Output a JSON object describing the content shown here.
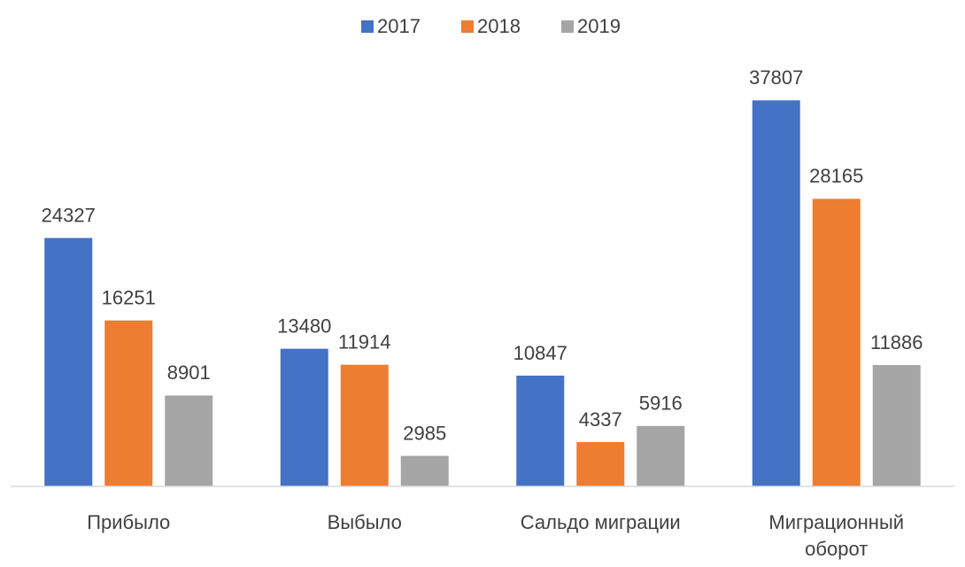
{
  "chart_data": {
    "type": "bar",
    "categories": [
      "Прибыло",
      "Выбыло",
      "Сальдо миграции",
      "Миграционный оборот"
    ],
    "series": [
      {
        "name": "2017",
        "color": "#4472c4",
        "values": [
          24327,
          13480,
          10847,
          37807
        ]
      },
      {
        "name": "2018",
        "color": "#ed7d31",
        "values": [
          16251,
          11914,
          4337,
          28165
        ]
      },
      {
        "name": "2019",
        "color": "#a5a5a5",
        "values": [
          8901,
          2985,
          5916,
          11886
        ]
      }
    ],
    "ylim": [
      0,
      40000
    ],
    "legend": "top"
  }
}
